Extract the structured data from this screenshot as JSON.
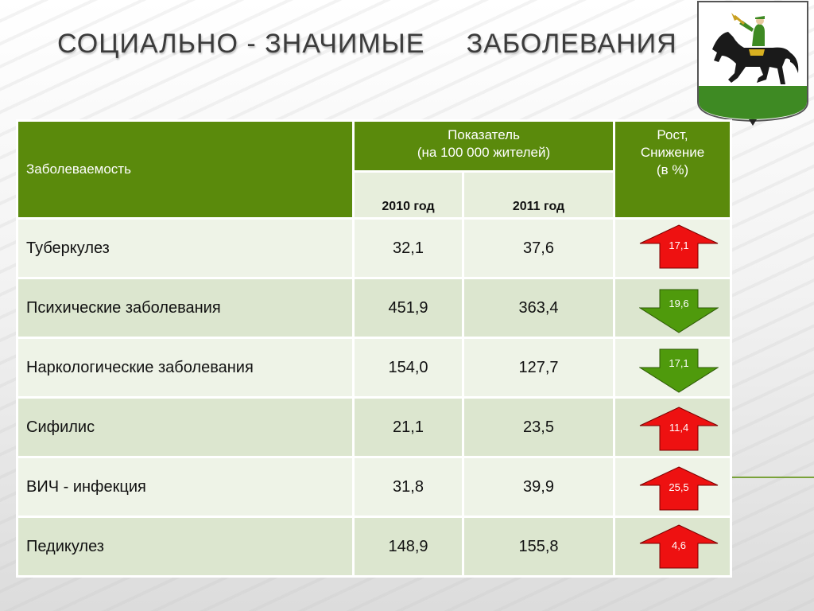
{
  "title": "СОЦИАЛЬНО - ЗНАЧИМЫЕ     ЗАБОЛЕВАНИЯ",
  "table": {
    "header": {
      "disease_col": "Заболеваемость",
      "indicator_line1": "Показатель",
      "indicator_line2": "(на 100 000 жителей)",
      "growth_line1": "Рост,",
      "growth_line2": "Снижение",
      "growth_line3": "(в %)",
      "year1": "2010 год",
      "year2": "2011 год"
    },
    "rows": [
      {
        "name": "Туберкулез",
        "v2010": "32,1",
        "v2011": "37,6",
        "change": "17,1",
        "direction": "up"
      },
      {
        "name": "Психические заболевания",
        "v2010": "451,9",
        "v2011": "363,4",
        "change": "19,6",
        "direction": "down"
      },
      {
        "name": "Наркологические заболевания",
        "v2010": "154,0",
        "v2011": "127,7",
        "change": "17,1",
        "direction": "down"
      },
      {
        "name": "Сифилис",
        "v2010": "21,1",
        "v2011": "23,5",
        "change": "11,4",
        "direction": "up"
      },
      {
        "name": "ВИЧ - инфекция",
        "v2010": "31,8",
        "v2011": "39,9",
        "change": "25,5",
        "direction": "up"
      },
      {
        "name": "Педикулез",
        "v2010": "148,9",
        "v2011": "155,8",
        "change": "4,6",
        "direction": "up"
      }
    ]
  },
  "colors": {
    "header_green": "#5a8a0c",
    "arrow_up": "#ee1111",
    "arrow_down": "#4f9a0c",
    "row_light": "#eef3e7",
    "row_dark": "#dce6cf"
  },
  "emblem": {
    "icon": "coat-of-arms-horseman-icon"
  }
}
